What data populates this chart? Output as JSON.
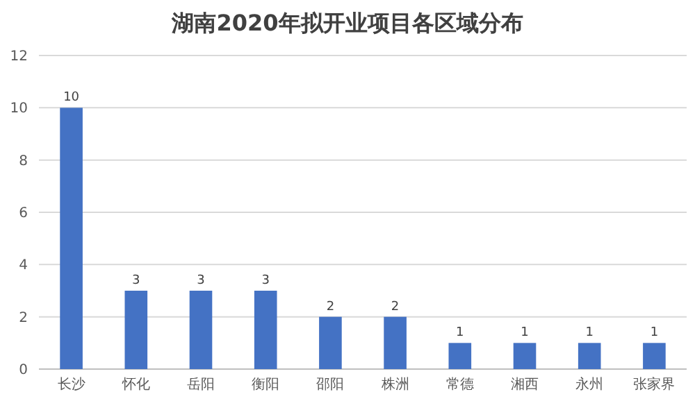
{
  "chart_data": {
    "type": "bar",
    "title": "湖南2020年拟开业项目各区域分布",
    "categories": [
      "长沙",
      "怀化",
      "岳阳",
      "衡阳",
      "邵阳",
      "株洲",
      "常德",
      "湘西",
      "永州",
      "张家界"
    ],
    "values": [
      10,
      3,
      3,
      3,
      2,
      2,
      1,
      1,
      1,
      1
    ],
    "color": "#4472c4",
    "ylim": [
      0,
      12
    ],
    "yticks": [
      0,
      2,
      4,
      6,
      8,
      10,
      12
    ],
    "grid": "y",
    "data_labels": true
  }
}
